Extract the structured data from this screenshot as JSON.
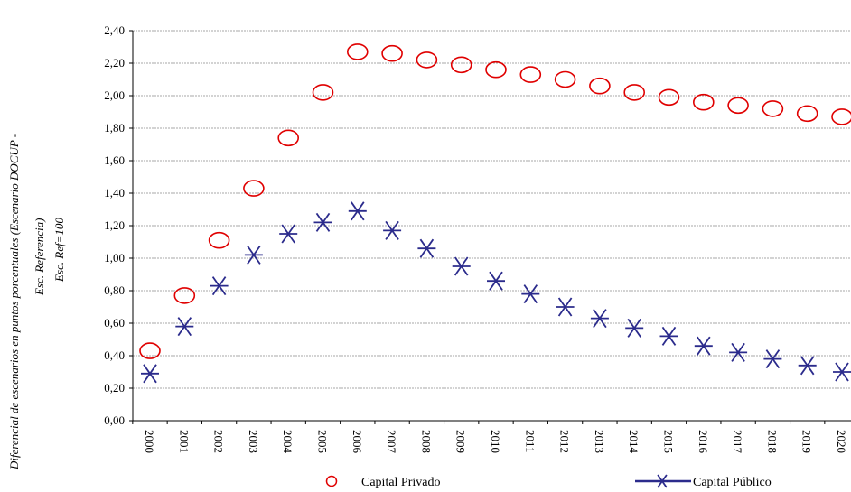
{
  "chart_data": {
    "type": "scatter",
    "categories": [
      "2000",
      "2001",
      "2002",
      "2003",
      "2004",
      "2005",
      "2006",
      "2007",
      "2008",
      "2009",
      "2010",
      "2011",
      "2012",
      "2013",
      "2014",
      "2015",
      "2016",
      "2017",
      "2018",
      "2019",
      "2020"
    ],
    "series": [
      {
        "name": "Capital Privado",
        "marker": "circle",
        "color": "#e00000",
        "values": [
          0.43,
          0.77,
          1.11,
          1.43,
          1.74,
          2.02,
          2.27,
          2.26,
          2.22,
          2.19,
          2.16,
          2.13,
          2.1,
          2.06,
          2.02,
          1.99,
          1.96,
          1.94,
          1.92,
          1.89,
          1.87
        ]
      },
      {
        "name": "Capital Público",
        "marker": "asterisk",
        "color": "#2b2b8c",
        "values": [
          0.29,
          0.58,
          0.83,
          1.02,
          1.15,
          1.22,
          1.29,
          1.17,
          1.06,
          0.95,
          0.86,
          0.78,
          0.7,
          0.63,
          0.57,
          0.52,
          0.46,
          0.42,
          0.38,
          0.34,
          0.3
        ]
      }
    ],
    "ylim": [
      0,
      2.4
    ],
    "yticks": [
      "0,00",
      "0,20",
      "0,40",
      "0,60",
      "0,80",
      "1,00",
      "1,20",
      "1,40",
      "1,60",
      "1,80",
      "2,00",
      "2,20",
      "2,40"
    ],
    "ylabel_lines": [
      "Diferencial de escenarios en puntos porcentuales (Escenario DOCUP -",
      "Esc. Referencia)",
      "Esc. Ref=100"
    ],
    "grid": true,
    "legend": "bottom"
  }
}
